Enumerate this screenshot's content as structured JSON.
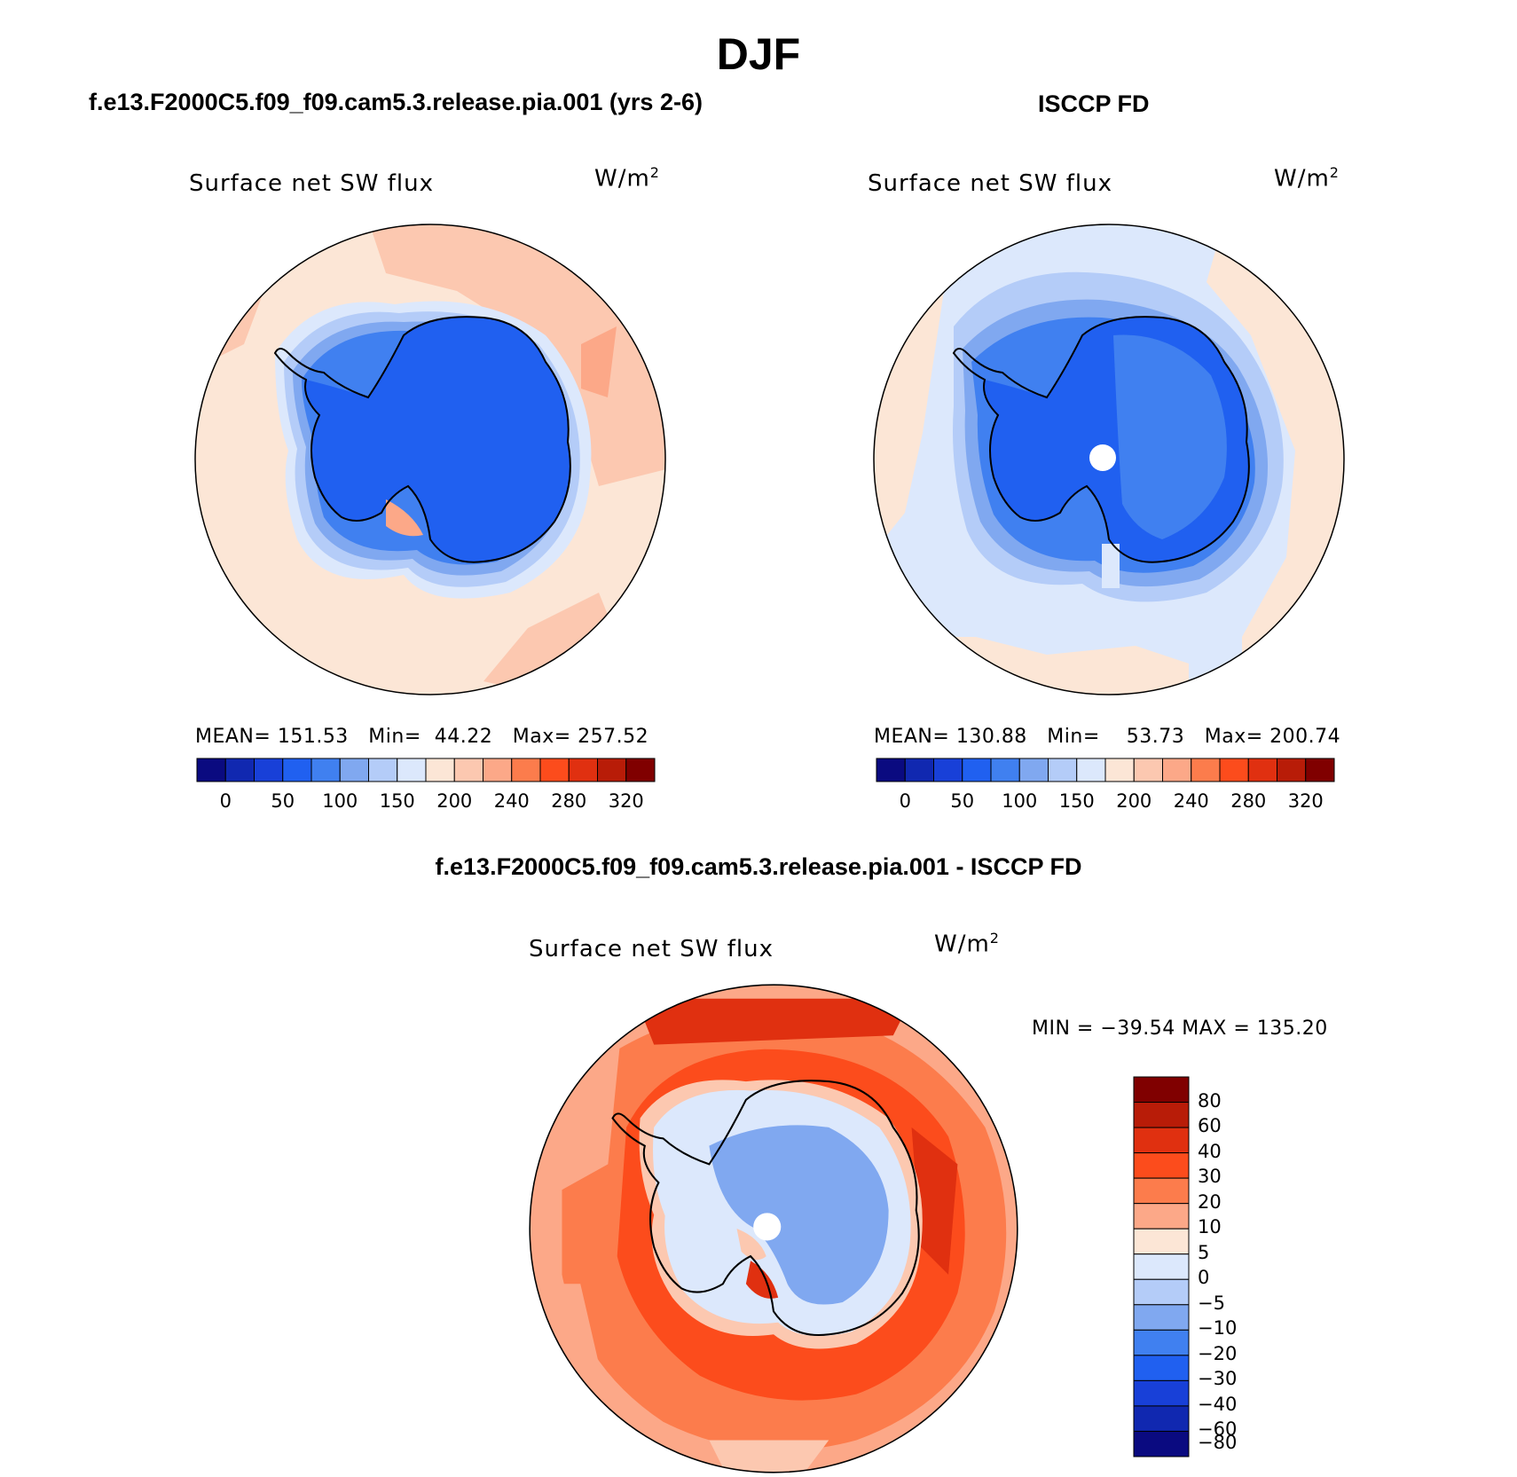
{
  "figure": {
    "season": "DJF",
    "panels": [
      {
        "title": "f.e13.F2000C5.f09_f09.cam5.3.release.pia.001 (yrs 2-6)",
        "variable": "Surface net SW flux",
        "units": "W/m",
        "units_superscript": "2",
        "stats": {
          "mean_label": "MEAN=",
          "mean": "151.53",
          "min_label": "Min=",
          "min": "44.22",
          "max_label": "Max=",
          "max": "257.52"
        }
      },
      {
        "title": "ISCCP FD",
        "variable": "Surface net SW flux",
        "units": "W/m",
        "units_superscript": "2",
        "stats": {
          "mean_label": "MEAN=",
          "mean": "130.88",
          "min_label": "Min=",
          "min": "53.73",
          "max_label": "Max=",
          "max": "200.74"
        }
      },
      {
        "title": "f.e13.F2000C5.f09_f09.cam5.3.release.pia.001 - ISCCP FD",
        "variable": "Surface net SW flux",
        "units": "W/m",
        "units_superscript": "2",
        "stats_text": "MIN = −39.54 MAX = 135.20"
      }
    ],
    "abs_colorbar": {
      "colors": [
        "#0a0a80",
        "#1028b0",
        "#1840d8",
        "#2060f0",
        "#4080f0",
        "#80a8f0",
        "#b4ccf8",
        "#dce8fc",
        "#fce6d6",
        "#fcc8b0",
        "#fca888",
        "#fc7c4c",
        "#fc4c1c",
        "#e03010",
        "#b81c08",
        "#800000"
      ],
      "ticks": [
        "0",
        "50",
        "100",
        "150",
        "200",
        "240",
        "280",
        "320"
      ]
    },
    "diff_colorbar": {
      "colors": [
        "#800000",
        "#b81c08",
        "#e03010",
        "#fc4c1c",
        "#fc7c4c",
        "#fca888",
        "#fce6d6",
        "#dce8fc",
        "#b4ccf8",
        "#80a8f0",
        "#4080f0",
        "#2060f0",
        "#1840d8",
        "#1028b0",
        "#0a0a80"
      ],
      "ticks": [
        "80",
        "60",
        "40",
        "30",
        "20",
        "10",
        "5",
        "0",
        "−5",
        "−10",
        "−20",
        "−30",
        "−40",
        "−60",
        "−80"
      ]
    }
  }
}
